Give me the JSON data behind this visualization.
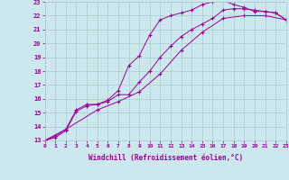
{
  "xlabel": "Windchill (Refroidissement éolien,°C)",
  "background_color": "#cce8ee",
  "grid_color": "#aacccc",
  "line_color": "#990099",
  "xlim": [
    0,
    23
  ],
  "ylim": [
    13,
    23
  ],
  "yticks": [
    13,
    14,
    15,
    16,
    17,
    18,
    19,
    20,
    21,
    22,
    23
  ],
  "xticks": [
    0,
    1,
    2,
    3,
    4,
    5,
    6,
    7,
    8,
    9,
    10,
    11,
    12,
    13,
    14,
    15,
    16,
    17,
    18,
    19,
    20,
    21,
    22,
    23
  ],
  "series": [
    {
      "x": [
        0,
        1,
        2,
        3,
        4,
        5,
        6,
        7,
        8,
        9,
        10,
        11,
        12,
        13,
        14,
        15,
        16,
        17,
        18,
        19,
        20,
        21,
        22,
        23
      ],
      "y": [
        13,
        13.3,
        13.8,
        15.2,
        15.6,
        15.6,
        15.9,
        16.6,
        18.4,
        19.1,
        20.6,
        21.7,
        22.0,
        22.2,
        22.4,
        22.8,
        23.0,
        23.1,
        22.8,
        22.6,
        22.3,
        22.3,
        22.2,
        21.7
      ]
    },
    {
      "x": [
        0,
        1,
        2,
        3,
        4,
        5,
        6,
        7,
        8,
        9,
        10,
        11,
        12,
        13,
        14,
        15,
        16,
        17,
        18,
        19,
        20,
        21,
        22,
        23
      ],
      "y": [
        13,
        13.2,
        13.7,
        15.1,
        15.5,
        15.6,
        15.8,
        16.3,
        16.3,
        17.2,
        18.0,
        19.0,
        19.8,
        20.5,
        21.0,
        21.4,
        21.8,
        22.4,
        22.5,
        22.5,
        22.4,
        22.3,
        22.2,
        21.7
      ]
    },
    {
      "x": [
        0,
        2,
        5,
        7,
        9,
        11,
        13,
        15,
        17,
        19,
        21,
        23
      ],
      "y": [
        13,
        13.8,
        15.2,
        15.8,
        16.5,
        17.8,
        19.5,
        20.8,
        21.8,
        22.0,
        22.0,
        21.7
      ]
    }
  ]
}
